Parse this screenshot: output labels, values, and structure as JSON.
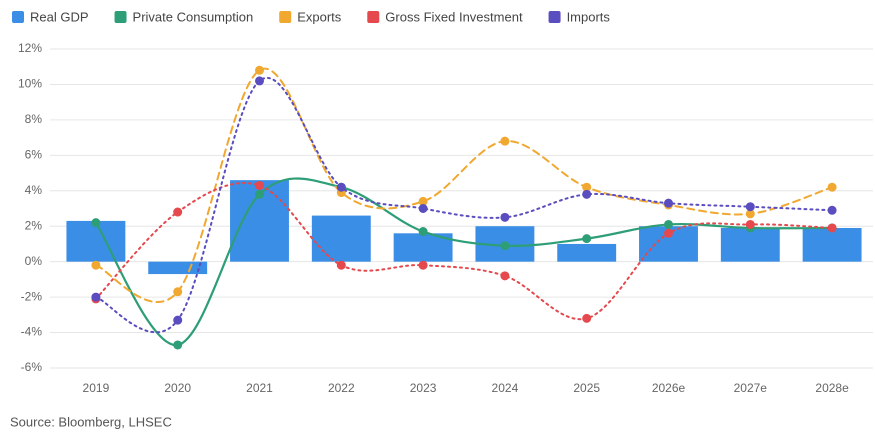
{
  "chart_data": {
    "type": "bar",
    "categories": [
      "2019",
      "2020",
      "2021",
      "2022",
      "2023",
      "2024",
      "2025",
      "2026e",
      "2027e",
      "2028e"
    ],
    "series": [
      {
        "name": "Real GDP",
        "type": "bar",
        "color": "#3a8ee6",
        "values": [
          2.3,
          -0.7,
          4.6,
          2.6,
          1.6,
          2.0,
          1.0,
          2.0,
          1.9,
          1.9
        ]
      },
      {
        "name": "Private Consumption",
        "type": "line",
        "style": "solid",
        "color": "#2e9e77",
        "values": [
          2.2,
          -4.7,
          3.8,
          4.2,
          1.7,
          0.9,
          1.3,
          2.1,
          1.9,
          1.9
        ]
      },
      {
        "name": "Exports",
        "type": "line",
        "style": "dashed",
        "color": "#f0a830",
        "values": [
          -0.2,
          -1.7,
          10.8,
          3.9,
          3.4,
          6.8,
          4.2,
          3.2,
          2.7,
          4.2
        ]
      },
      {
        "name": "Gross Fixed Investment",
        "type": "line",
        "style": "dotted",
        "color": "#e5484d",
        "values": [
          -2.1,
          2.8,
          4.3,
          -0.2,
          -0.2,
          -0.8,
          -3.2,
          1.6,
          2.1,
          1.9
        ]
      },
      {
        "name": "Imports",
        "type": "line",
        "style": "dotted",
        "color": "#5a4dbf",
        "values": [
          -2.0,
          -3.3,
          10.2,
          4.2,
          3.0,
          2.5,
          3.8,
          3.3,
          3.1,
          2.9
        ]
      }
    ],
    "smooth": true,
    "ylim": [
      -6,
      12
    ],
    "yticks": [
      {
        "value": -6,
        "label": "-6%"
      },
      {
        "value": -4,
        "label": "-4%"
      },
      {
        "value": -2,
        "label": "-2%"
      },
      {
        "value": 0,
        "label": "0%"
      },
      {
        "value": 2,
        "label": "2%"
      },
      {
        "value": 4,
        "label": "4%"
      },
      {
        "value": 6,
        "label": "6%"
      },
      {
        "value": 8,
        "label": "8%"
      },
      {
        "value": 10,
        "label": "10%"
      },
      {
        "value": 12,
        "label": "12%"
      }
    ],
    "grid": true,
    "legend": "top-left",
    "source": "Source: Bloomberg, LHSEC"
  }
}
